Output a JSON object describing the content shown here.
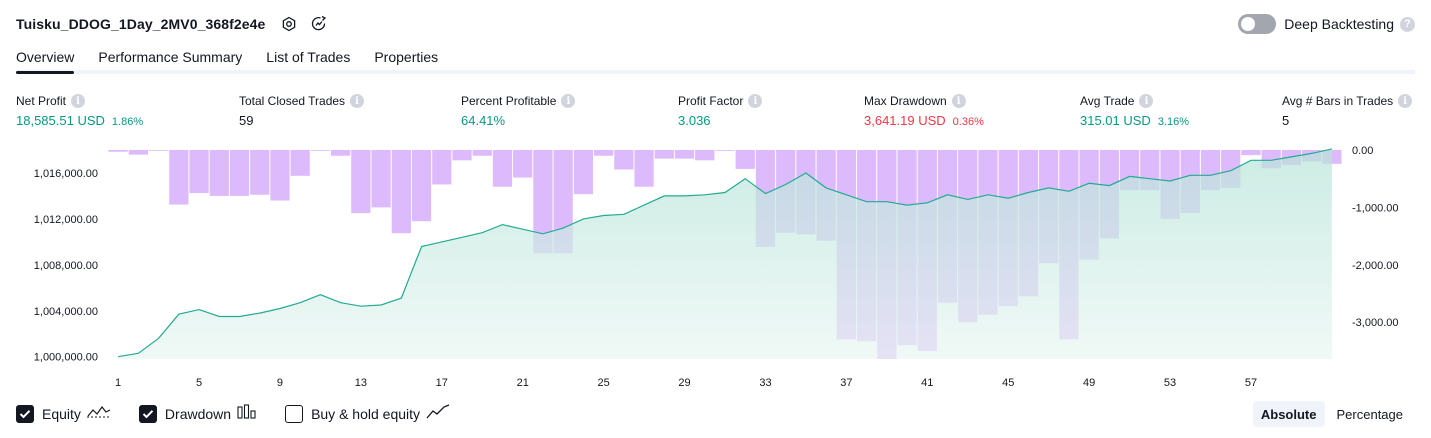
{
  "header": {
    "title": "Tuisku_DDOG_1Day_2MV0_368f2e4e"
  },
  "deep_backtesting": {
    "label": "Deep Backtesting",
    "enabled": false
  },
  "tabs": [
    {
      "label": "Overview",
      "active": true
    },
    {
      "label": "Performance Summary",
      "active": false
    },
    {
      "label": "List of Trades",
      "active": false
    },
    {
      "label": "Properties",
      "active": false
    }
  ],
  "stats": {
    "net_profit": {
      "label": "Net Profit",
      "value": "18,585.51 USD",
      "pct": "1.86%"
    },
    "total_closed_trades": {
      "label": "Total Closed Trades",
      "value": "59"
    },
    "percent_profitable": {
      "label": "Percent Profitable",
      "value": "64.41%"
    },
    "profit_factor": {
      "label": "Profit Factor",
      "value": "3.036"
    },
    "max_drawdown": {
      "label": "Max Drawdown",
      "value": "3,641.19 USD",
      "pct": "0.36%"
    },
    "avg_trade": {
      "label": "Avg Trade",
      "value": "315.01 USD",
      "pct": "3.16%"
    },
    "avg_bars": {
      "label": "Avg # Bars in Trades",
      "value": "5"
    }
  },
  "legend": {
    "equity": "Equity",
    "drawdown": "Drawdown",
    "buy_hold": "Buy & hold equity"
  },
  "scale": {
    "absolute": "Absolute",
    "percentage": "Percentage"
  },
  "colors": {
    "equity_line": "#22ab94",
    "equity_fill": "#c9ebe3",
    "drawdown": "#d9b3fb",
    "text": "#131722",
    "green": "#089981",
    "red": "#f23645"
  },
  "chart_data": {
    "type": "area",
    "x_ticks": [
      "1",
      "5",
      "9",
      "13",
      "17",
      "21",
      "25",
      "29",
      "33",
      "37",
      "41",
      "45",
      "49",
      "53",
      "57"
    ],
    "left_axis": {
      "label_ticks": [
        "1,000,000.00",
        "1,004,000.00",
        "1,008,000.00",
        "1,012,000.00",
        "1,016,000.00"
      ],
      "range": [
        999800,
        1018000
      ]
    },
    "right_axis": {
      "label_ticks": [
        "0.00",
        "-1,000.00",
        "-2,000.00",
        "-3,000.00"
      ],
      "range": [
        -3641,
        0
      ]
    },
    "series": [
      {
        "name": "Equity",
        "values": [
          1000000,
          1000300,
          1001600,
          1003700,
          1004100,
          1003500,
          1003500,
          1003800,
          1004200,
          1004700,
          1005400,
          1004700,
          1004400,
          1004500,
          1005100,
          1009600,
          1010000,
          1010400,
          1010800,
          1011500,
          1011100,
          1010700,
          1011200,
          1012000,
          1012300,
          1012400,
          1013200,
          1014000,
          1014000,
          1014100,
          1014300,
          1015500,
          1014200,
          1015000,
          1016000,
          1014700,
          1014100,
          1013500,
          1013500,
          1013200,
          1013400,
          1014100,
          1013700,
          1014100,
          1013800,
          1014300,
          1014700,
          1014400,
          1015100,
          1014900,
          1015700,
          1015500,
          1015300,
          1015800,
          1015800,
          1016200,
          1017100,
          1017100,
          1017400,
          1017700,
          1018100
        ]
      },
      {
        "name": "Drawdown",
        "values": [
          -30,
          -80,
          0,
          -950,
          -750,
          -800,
          -800,
          -780,
          -880,
          -450,
          0,
          -100,
          -1100,
          -1000,
          -1450,
          -1240,
          -600,
          -180,
          -100,
          -640,
          -480,
          -1800,
          -1800,
          -770,
          -100,
          -340,
          -640,
          -150,
          -150,
          -180,
          0,
          -330,
          -1690,
          -1440,
          -1470,
          -1580,
          -3300,
          -3330,
          -3641,
          -3400,
          -3500,
          -2660,
          -3000,
          -2870,
          -2720,
          -2550,
          -1970,
          -3300,
          -1910,
          -1540,
          -700,
          -700,
          -1200,
          -1100,
          -700,
          -660,
          -90,
          -320,
          -260,
          -200,
          -240
        ]
      }
    ]
  }
}
